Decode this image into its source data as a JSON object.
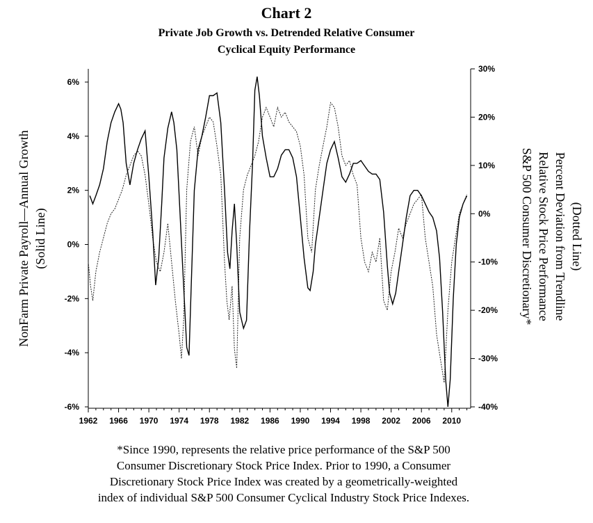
{
  "chart_data": {
    "type": "line",
    "title": "Chart 2",
    "subtitle_lines": [
      "Private Job Growth vs. Detrended Relative Consumer",
      "Cyclical Equity Performance"
    ],
    "x_ticks": [
      "1962",
      "1966",
      "1970",
      "1974",
      "1978",
      "1982",
      "1986",
      "1990",
      "1994",
      "1998",
      "2002",
      "2006",
      "2010"
    ],
    "xlim": [
      1962,
      2012.5
    ],
    "left_axis": {
      "label_lines": [
        "NonFarm Private Payroll—Annual Growth",
        "(Solid Line)"
      ],
      "ylim": [
        -6,
        6
      ],
      "ticks": [
        6,
        4,
        2,
        0,
        -2,
        -4,
        -6
      ],
      "tick_labels": [
        "6%",
        "4%",
        "2%",
        "0%",
        "-2%",
        "-4%",
        "-6%"
      ]
    },
    "right_axis": {
      "label_lines": [
        "S&P 500 Consumer Discretionary*",
        "Relative Stock Price Performance",
        "Percent Deviation from Trendline",
        "(Dotted Line)"
      ],
      "ylim": [
        -40,
        30
      ],
      "ticks": [
        30,
        20,
        10,
        0,
        -10,
        -20,
        -30,
        -40
      ],
      "tick_labels": [
        "30%",
        "20%",
        "10%",
        "0%",
        "-10%",
        "-20%",
        "-30%",
        "-40%"
      ]
    },
    "series": [
      {
        "name": "NonFarm Private Payroll Annual Growth",
        "axis": "left",
        "style": "solid",
        "x": [
          1962.2,
          1962.6,
          1963.0,
          1963.5,
          1964.0,
          1964.5,
          1965.0,
          1965.5,
          1966.0,
          1966.3,
          1966.6,
          1967.0,
          1967.5,
          1968.0,
          1968.5,
          1969.0,
          1969.5,
          1970.0,
          1970.5,
          1970.9,
          1971.3,
          1971.7,
          1972.0,
          1972.5,
          1973.0,
          1973.3,
          1973.7,
          1974.0,
          1974.5,
          1975.0,
          1975.3,
          1975.6,
          1976.0,
          1976.5,
          1977.0,
          1977.5,
          1978.0,
          1978.5,
          1979.0,
          1979.5,
          1980.0,
          1980.4,
          1980.7,
          1981.0,
          1981.3,
          1981.6,
          1982.0,
          1982.5,
          1982.9,
          1983.3,
          1983.7,
          1984.0,
          1984.3,
          1984.6,
          1985.0,
          1985.5,
          1986.0,
          1986.5,
          1987.0,
          1987.5,
          1988.0,
          1988.5,
          1989.0,
          1989.5,
          1990.0,
          1990.5,
          1991.0,
          1991.3,
          1991.7,
          1992.0,
          1992.5,
          1993.0,
          1993.5,
          1994.0,
          1994.5,
          1995.0,
          1995.5,
          1996.0,
          1996.5,
          1997.0,
          1997.5,
          1998.0,
          1998.5,
          1999.0,
          1999.5,
          2000.0,
          2000.5,
          2001.0,
          2001.5,
          2001.8,
          2002.2,
          2002.6,
          2003.0,
          2003.5,
          2004.0,
          2004.5,
          2005.0,
          2005.5,
          2006.0,
          2006.5,
          2007.0,
          2007.5,
          2008.0,
          2008.4,
          2008.8,
          2009.2,
          2009.5,
          2009.8,
          2010.2,
          2010.6,
          2011.0,
          2011.5,
          2012.0
        ],
        "values": [
          1.8,
          1.5,
          1.8,
          2.2,
          2.8,
          3.8,
          4.5,
          4.9,
          5.2,
          5.0,
          4.5,
          3.0,
          2.2,
          3.0,
          3.5,
          3.9,
          4.2,
          2.5,
          0.5,
          -1.5,
          -0.5,
          1.5,
          3.2,
          4.3,
          4.9,
          4.5,
          3.5,
          1.8,
          -1.0,
          -3.8,
          -4.1,
          -1.5,
          2.0,
          3.5,
          4.0,
          4.7,
          5.5,
          5.5,
          5.6,
          4.5,
          2.0,
          -0.3,
          -0.9,
          0.5,
          1.5,
          0.0,
          -2.5,
          -3.1,
          -2.8,
          0.5,
          3.0,
          5.7,
          6.2,
          5.5,
          4.0,
          3.2,
          2.5,
          2.5,
          2.8,
          3.3,
          3.5,
          3.5,
          3.2,
          2.5,
          1.0,
          -0.5,
          -1.6,
          -1.7,
          -1.0,
          0.0,
          1.0,
          2.0,
          3.0,
          3.5,
          3.8,
          3.2,
          2.5,
          2.3,
          2.6,
          3.0,
          3.0,
          3.1,
          2.9,
          2.7,
          2.6,
          2.6,
          2.4,
          1.2,
          -0.8,
          -1.8,
          -2.2,
          -1.8,
          -1.0,
          0.0,
          1.0,
          1.8,
          2.0,
          2.0,
          1.8,
          1.5,
          1.2,
          1.0,
          0.5,
          -0.5,
          -2.5,
          -5.0,
          -6.0,
          -5.0,
          -2.0,
          0.0,
          1.0,
          1.5,
          1.8
        ]
      },
      {
        "name": "S&P 500 Consumer Discretionary Relative Performance",
        "axis": "right",
        "style": "dotted",
        "x": [
          1962.0,
          1962.3,
          1962.6,
          1963.0,
          1963.5,
          1964.0,
          1964.5,
          1965.0,
          1965.5,
          1966.0,
          1966.5,
          1967.0,
          1967.5,
          1968.0,
          1968.5,
          1969.0,
          1969.5,
          1970.0,
          1970.5,
          1971.0,
          1971.5,
          1972.0,
          1972.5,
          1973.0,
          1973.5,
          1974.0,
          1974.3,
          1974.6,
          1975.0,
          1975.5,
          1976.0,
          1976.5,
          1977.0,
          1977.5,
          1978.0,
          1978.5,
          1979.0,
          1979.5,
          1980.0,
          1980.3,
          1980.6,
          1981.0,
          1981.3,
          1981.6,
          1982.0,
          1982.5,
          1983.0,
          1983.5,
          1984.0,
          1984.5,
          1985.0,
          1985.5,
          1986.0,
          1986.5,
          1987.0,
          1987.5,
          1988.0,
          1988.5,
          1989.0,
          1989.5,
          1990.0,
          1990.5,
          1991.0,
          1991.5,
          1992.0,
          1992.5,
          1993.0,
          1993.5,
          1994.0,
          1994.5,
          1995.0,
          1995.5,
          1996.0,
          1996.5,
          1997.0,
          1997.5,
          1998.0,
          1998.5,
          1999.0,
          1999.5,
          2000.0,
          2000.5,
          2001.0,
          2001.5,
          2002.0,
          2002.5,
          2003.0,
          2003.5,
          2004.0,
          2004.5,
          2005.0,
          2005.5,
          2006.0,
          2006.5,
          2007.0,
          2007.5,
          2008.0,
          2008.5,
          2009.0,
          2009.5,
          2010.0,
          2010.5,
          2011.0,
          2011.5,
          2012.0
        ],
        "values": [
          -10,
          -15,
          -18,
          -12,
          -8,
          -5,
          -2,
          0,
          1,
          3,
          5,
          8,
          10,
          12,
          13,
          12,
          8,
          2,
          -5,
          -10,
          -12,
          -8,
          -2,
          -10,
          -18,
          -25,
          -30,
          -22,
          5,
          15,
          18,
          12,
          16,
          18,
          20,
          19,
          14,
          8,
          -10,
          -18,
          -22,
          -15,
          -28,
          -32,
          -5,
          5,
          8,
          10,
          12,
          15,
          20,
          22,
          20,
          18,
          22,
          20,
          21,
          19,
          18,
          17,
          14,
          8,
          -5,
          -8,
          5,
          10,
          14,
          18,
          23,
          22,
          18,
          12,
          10,
          11,
          8,
          6,
          -5,
          -10,
          -12,
          -8,
          -10,
          -5,
          -18,
          -20,
          -12,
          -8,
          -3,
          -5,
          -2,
          0,
          2,
          3,
          4,
          -5,
          -10,
          -15,
          -25,
          -30,
          -35,
          -20,
          -10,
          -5,
          0,
          2,
          4
        ]
      }
    ],
    "footnote_lines": [
      "*Since 1990, represents the relative price performance of the S&P 500",
      "Consumer Discretionary Stock Price Index. Prior to 1990, a Consumer",
      "Discretionary Stock Price Index was created by a geometrically-weighted",
      "index of individual S&P 500 Consumer Cyclical Industry Stock Price Indexes."
    ]
  }
}
